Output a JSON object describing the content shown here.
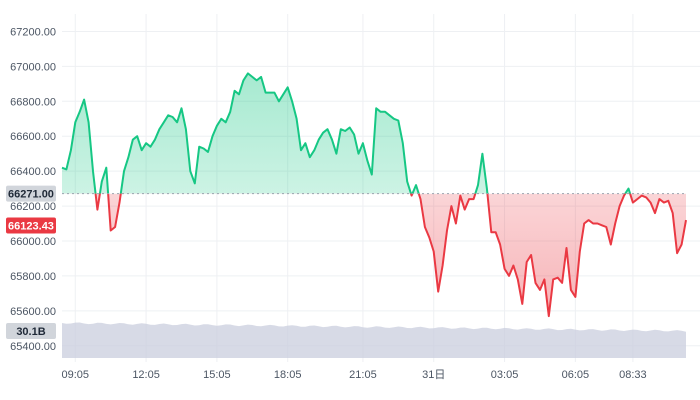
{
  "chart_data": {
    "type": "area",
    "y_tick_labels": [
      "67200.00",
      "67000.00",
      "66800.00",
      "66600.00",
      "66400.00",
      "66200.00",
      "66000.00",
      "65800.00",
      "65600.00",
      "65400.00"
    ],
    "x_tick_labels": [
      "09:05",
      "12:05",
      "15:05",
      "18:05",
      "21:05",
      "31日",
      "03:05",
      "06:05",
      "08:33"
    ],
    "ylim": [
      65330,
      67300
    ],
    "baseline": {
      "label": "66271.00",
      "value": 66271
    },
    "current": {
      "label": "66123.43",
      "value": 66123.43
    },
    "volume": {
      "label": "30.1B"
    },
    "colors": {
      "above": "#16c784",
      "below": "#ea3943",
      "volume": "#c9cede",
      "grid": "#eef0f3"
    },
    "series": [
      {
        "values": [
          66420,
          66410,
          66520,
          66680,
          66740,
          66810,
          66680,
          66400,
          66180,
          66340,
          66420,
          66060,
          66080,
          66220,
          66400,
          66480,
          66580,
          66600,
          66520,
          66560,
          66540,
          66580,
          66640,
          66680,
          66720,
          66710,
          66680,
          66760,
          66640,
          66400,
          66330,
          66540,
          66530,
          66510,
          66600,
          66660,
          66700,
          66680,
          66740,
          66860,
          66840,
          66920,
          66960,
          66940,
          66920,
          66940,
          66850,
          66850,
          66850,
          66800,
          66840,
          66880,
          66800,
          66700,
          66520,
          66560,
          66480,
          66520,
          66580,
          66620,
          66640,
          66580,
          66500,
          66640,
          66630,
          66650,
          66610,
          66500,
          66560,
          66460,
          66380,
          66760,
          66740,
          66740,
          66720,
          66700,
          66690,
          66560,
          66340,
          66260,
          66320,
          66240,
          66080,
          66020,
          65940,
          65710,
          65860,
          66060,
          66200,
          66100,
          66260,
          66180,
          66240,
          66240,
          66320,
          66500,
          66300,
          66050,
          66050,
          65980,
          65840,
          65800,
          65860,
          65780,
          65640,
          65880,
          65920,
          65760,
          65720,
          65780,
          65570,
          65780,
          65790,
          65760,
          65960,
          65720,
          65680,
          65940,
          66100,
          66120,
          66100,
          66100,
          66090,
          66080,
          65980,
          66100,
          66200,
          66260,
          66300,
          66220,
          66240,
          66260,
          66250,
          66220,
          66160,
          66240,
          66220,
          66230,
          66160,
          65930,
          65980,
          66120
        ]
      }
    ]
  }
}
